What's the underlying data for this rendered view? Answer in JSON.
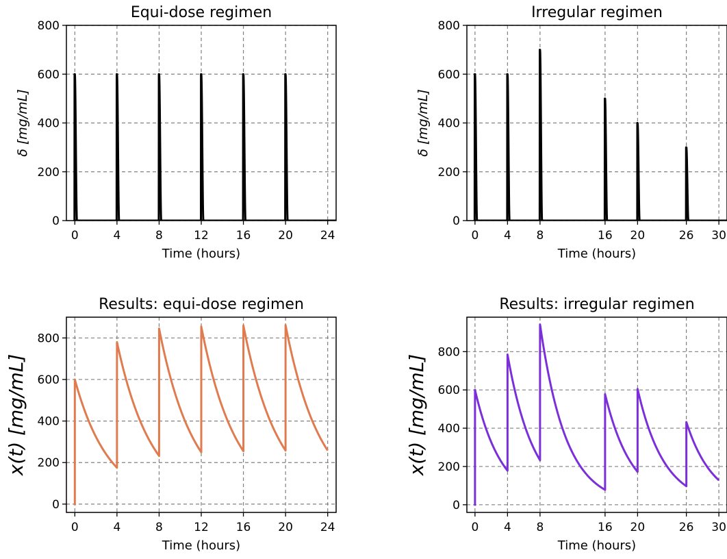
{
  "chart_data": [
    {
      "type": "line",
      "title": "Equi-dose regimen",
      "xlabel": "Time (hours)",
      "ylabel": "δ  [mg/mL]",
      "xlim": [
        -0.8,
        24.8
      ],
      "ylim": [
        0,
        800
      ],
      "xticks": [
        0,
        4,
        8,
        12,
        16,
        20,
        24
      ],
      "yticks": [
        0,
        200,
        400,
        600,
        800
      ],
      "grid": true,
      "series": [
        {
          "kind": "pulses",
          "color": "#000000",
          "dose_times": [
            0,
            4,
            8,
            12,
            16,
            20
          ],
          "peaks": [
            600,
            600,
            600,
            600,
            600,
            600
          ],
          "pulse_width_hours": 0.2
        }
      ]
    },
    {
      "type": "line",
      "title": "Irregular regimen",
      "xlabel": "Time (hours)",
      "ylabel": "δ  [mg/mL]",
      "xlim": [
        -1.0,
        31.0
      ],
      "ylim": [
        0,
        800
      ],
      "xticks": [
        0,
        4,
        8,
        16,
        20,
        26,
        30
      ],
      "yticks": [
        0,
        200,
        400,
        600,
        800
      ],
      "grid": true,
      "series": [
        {
          "kind": "pulses",
          "color": "#000000",
          "dose_times": [
            0,
            4,
            8,
            16,
            20,
            26
          ],
          "peaks": [
            600,
            600,
            700,
            500,
            400,
            300
          ],
          "pulse_width_hours": 0.25
        }
      ]
    },
    {
      "type": "line",
      "title": "Results: equi-dose regimen",
      "xlabel": "Time (hours)",
      "ylabel": "x(t)  [mg/mL]",
      "xlim": [
        -0.8,
        24.8
      ],
      "ylim": [
        -40,
        900
      ],
      "xticks": [
        0,
        4,
        8,
        12,
        16,
        20,
        24
      ],
      "yticks": [
        0,
        200,
        400,
        600,
        800
      ],
      "grid": true,
      "series": [
        {
          "kind": "decay",
          "color": "#e07b4f",
          "x": [
            0,
            0,
            4,
            4,
            8,
            8,
            12,
            12,
            16,
            16,
            20,
            20,
            24
          ],
          "y": [
            -5,
            600,
            175,
            780,
            232,
            845,
            250,
            855,
            255,
            860,
            258,
            862,
            258
          ]
        }
      ]
    },
    {
      "type": "line",
      "title": "Results: irregular regimen",
      "xlabel": "Time (hours)",
      "ylabel": "x(t)  [mg/mL]",
      "xlim": [
        -1.0,
        31.0
      ],
      "ylim": [
        -40,
        980
      ],
      "xticks": [
        0,
        4,
        8,
        16,
        20,
        26,
        30
      ],
      "yticks": [
        0,
        200,
        400,
        600,
        800
      ],
      "grid": true,
      "series": [
        {
          "kind": "decay",
          "color": "#7b2fd9",
          "x": [
            0,
            0,
            4,
            4,
            8,
            8,
            16,
            16,
            20,
            20,
            26,
            26,
            30
          ],
          "y": [
            -5,
            600,
            178,
            785,
            233,
            942,
            78,
            578,
            172,
            605,
            97,
            432,
            128
          ]
        }
      ]
    }
  ]
}
